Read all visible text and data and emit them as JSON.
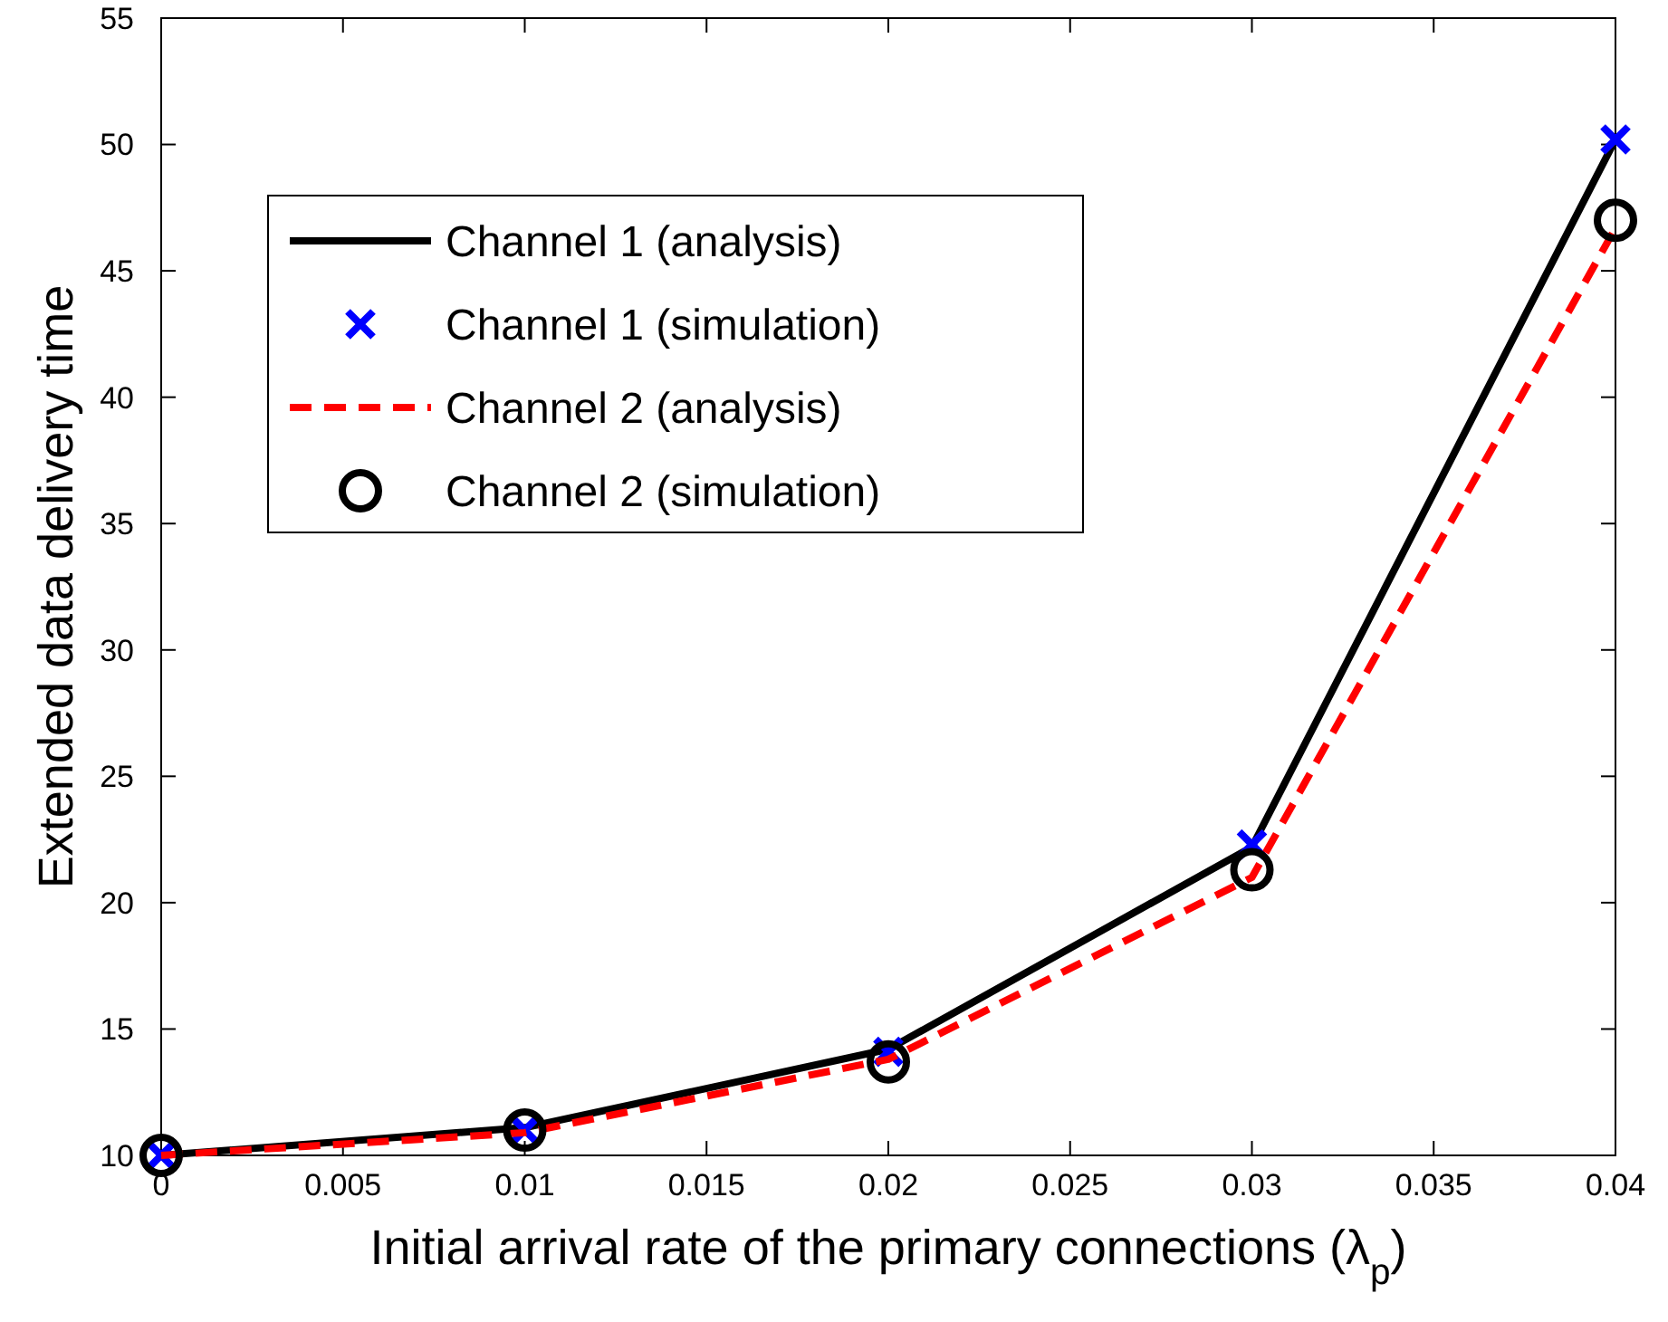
{
  "chart_data": {
    "type": "line",
    "xlabel": "Initial arrival rate of the primary connections (λ$_{p}$)",
    "ylabel": "Extended data delivery time",
    "x": [
      0,
      0.01,
      0.02,
      0.03,
      0.04
    ],
    "series": [
      {
        "name": "Channel 1 (analysis)",
        "color": "#000000",
        "marker": "none",
        "line_style": "solid",
        "values": [
          10,
          11.1,
          14.2,
          22.2,
          50.2
        ]
      },
      {
        "name": "Channel 1 (simulation)",
        "color": "#0000ff",
        "type": "scatter",
        "marker": "cross",
        "values": [
          10,
          11.0,
          14.1,
          22.3,
          50.2
        ]
      },
      {
        "name": "Channel 2 (analysis)",
        "color": "#ff0000",
        "marker": "none",
        "line_style": "dashed",
        "values": [
          10,
          10.9,
          13.8,
          21.0,
          46.7
        ]
      },
      {
        "name": "Channel 2 (simulation)",
        "color": "#000000",
        "type": "scatter",
        "marker": "circle",
        "values": [
          10,
          11.0,
          13.7,
          21.3,
          47.0
        ]
      }
    ],
    "xlim": [
      0,
      0.04
    ],
    "xticks": [
      0,
      0.005,
      0.01,
      0.015,
      0.02,
      0.025,
      0.03,
      0.035,
      0.04
    ],
    "ylim": [
      10,
      55
    ],
    "yticks": [
      10,
      15,
      20,
      25,
      30,
      35,
      40,
      45,
      50,
      55
    ],
    "grid": false,
    "legend": "top left"
  }
}
